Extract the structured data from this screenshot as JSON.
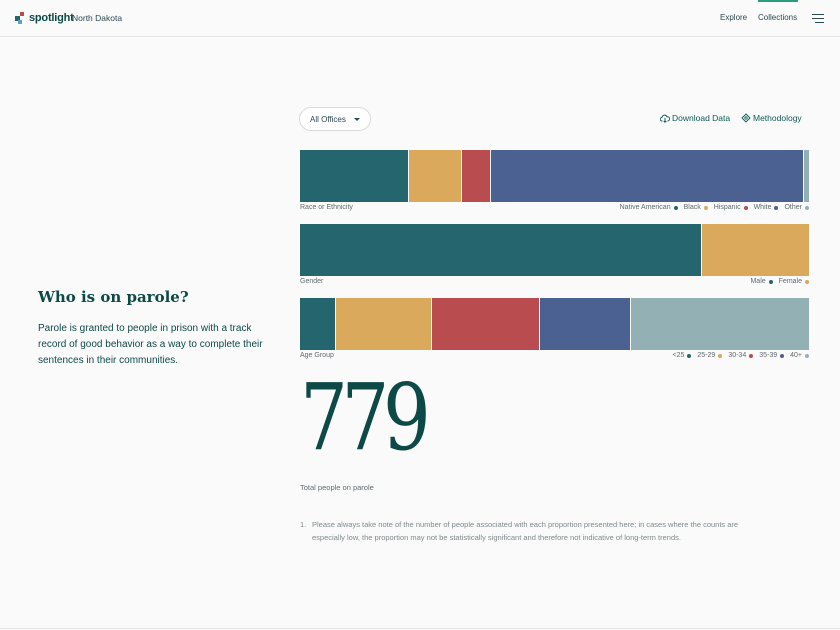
{
  "header": {
    "brand": "spotlight",
    "state": "North Dakota",
    "nav": [
      "Explore",
      "Collections"
    ]
  },
  "intro": {
    "title": "Who is on parole?",
    "description": "Parole is granted to people in prison with a track record of good behavior as a way to complete their sentences in their communities."
  },
  "controls": {
    "office_select": "All Offices",
    "download": "Download Data",
    "methodology": "Methodology"
  },
  "colors": {
    "teal": "#25656e",
    "gold": "#daa95c",
    "red": "#b94c4f",
    "blue": "#4b6191",
    "grey": "#93b0b5"
  },
  "breakdowns": [
    {
      "label": "Race or Ethnicity",
      "segments": [
        {
          "name": "Native American",
          "share": 0.215,
          "color": "#25656e"
        },
        {
          "name": "Black",
          "share": 0.104,
          "color": "#daa95c"
        },
        {
          "name": "Hispanic",
          "share": 0.056,
          "color": "#b94c4f"
        },
        {
          "name": "White",
          "share": 0.615,
          "color": "#4b6191"
        },
        {
          "name": "Other",
          "share": 0.01,
          "color": "#93b0b5"
        }
      ]
    },
    {
      "label": "Gender",
      "segments": [
        {
          "name": "Male",
          "share": 0.789,
          "color": "#25656e"
        },
        {
          "name": "Female",
          "share": 0.211,
          "color": "#daa95c"
        }
      ]
    },
    {
      "label": "Age Group",
      "segments": [
        {
          "name": "<25",
          "share": 0.071,
          "color": "#25656e"
        },
        {
          "name": "25-29",
          "share": 0.189,
          "color": "#daa95c"
        },
        {
          "name": "30-34",
          "share": 0.212,
          "color": "#b94c4f"
        },
        {
          "name": "35-39",
          "share": 0.179,
          "color": "#4b6191"
        },
        {
          "name": "40+",
          "share": 0.349,
          "color": "#93b0b5"
        }
      ]
    }
  ],
  "total": {
    "value": "779",
    "caption": "Total people on parole"
  },
  "footnote": {
    "number": "1.",
    "text": "Please always take note of the number of people associated with each proportion presented here; in cases where the counts are especially low, the proportion may not be statistically significant and therefore not indicative of long-term trends."
  }
}
